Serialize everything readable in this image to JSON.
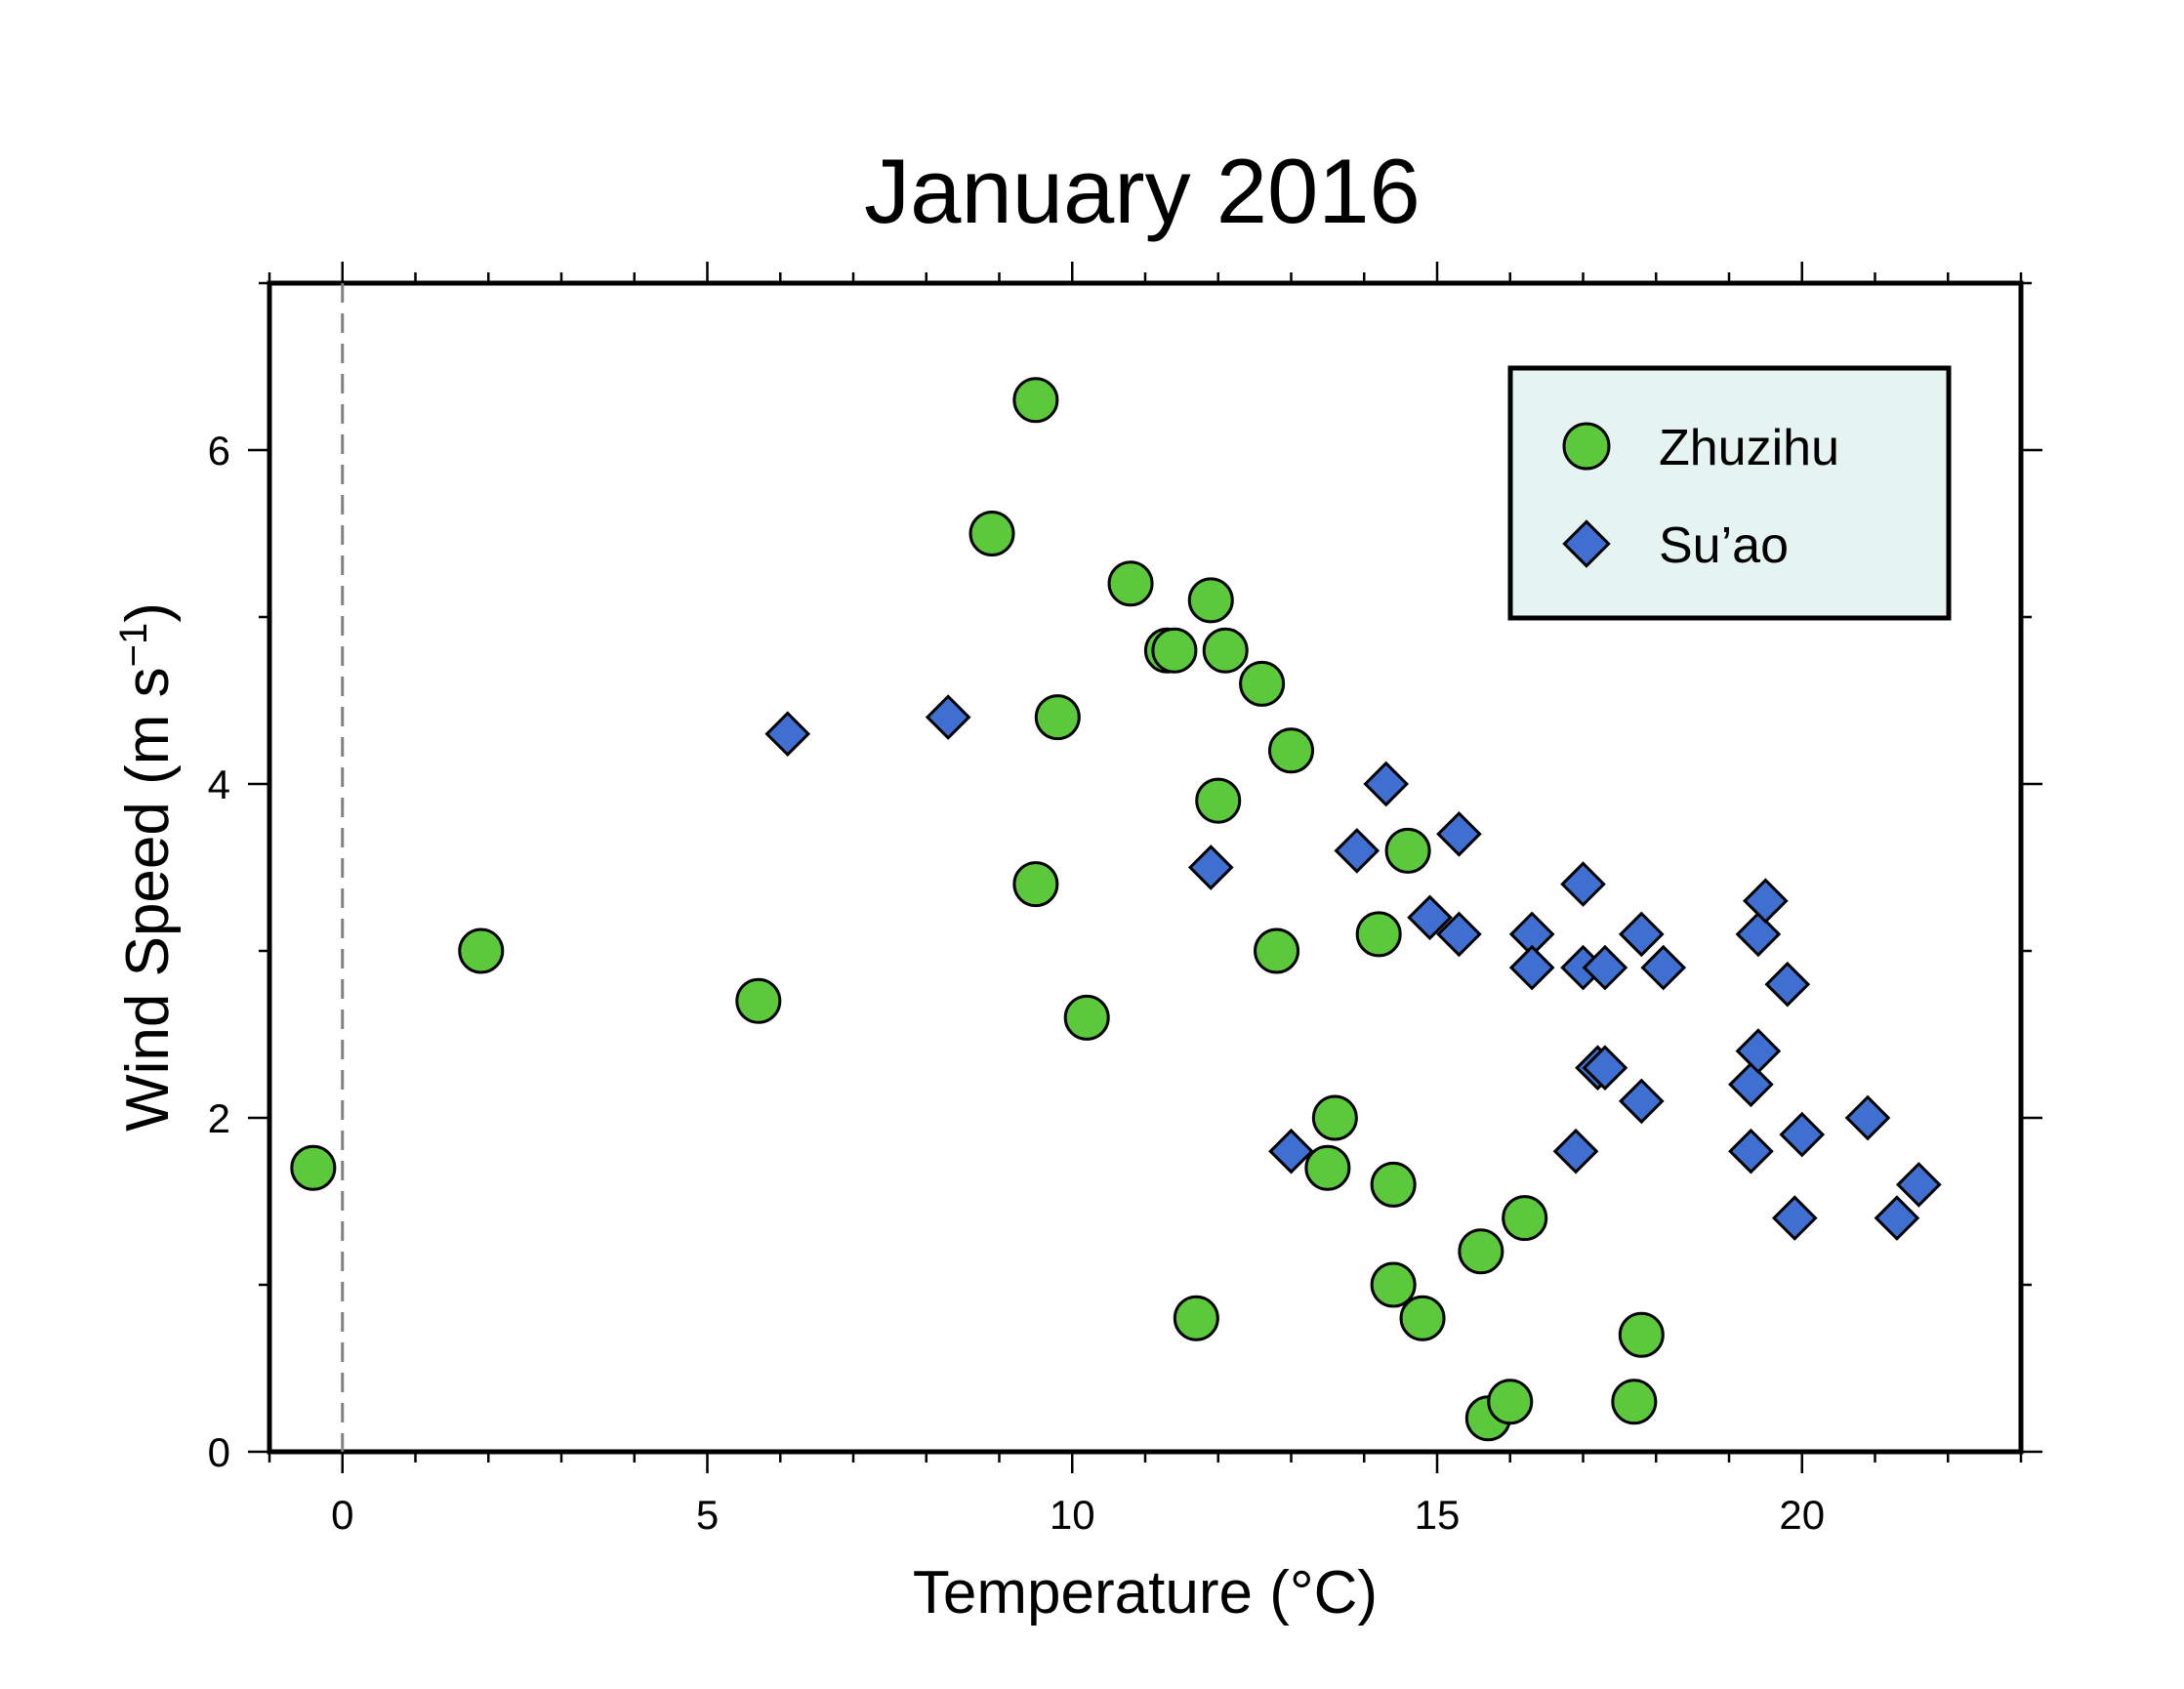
{
  "chart_data": {
    "type": "scatter",
    "title": "January 2016",
    "xlabel": "Temperature (°C)",
    "ylabel": "Wind Speed (m s",
    "ylabel_sup": "−1",
    "ylabel_end": ")",
    "xlim": [
      -1,
      23
    ],
    "ylim": [
      0,
      7
    ],
    "xticks": [
      0,
      5,
      10,
      15,
      20
    ],
    "yticks": [
      0,
      2,
      4,
      6
    ],
    "reference_line": {
      "axis": "x",
      "value": 0,
      "style": "dashed",
      "color": "#808080"
    },
    "legend": {
      "placement": "top-right",
      "background": "#e6f4f1"
    },
    "grid": false,
    "series": [
      {
        "name": "Zhuzihu",
        "marker": "circle",
        "color": "#5cc93c",
        "points": [
          [
            -0.4,
            1.7
          ],
          [
            1.9,
            3.0
          ],
          [
            5.7,
            2.7
          ],
          [
            8.9,
            5.5
          ],
          [
            9.5,
            6.3
          ],
          [
            9.5,
            3.4
          ],
          [
            9.8,
            4.4
          ],
          [
            10.2,
            2.6
          ],
          [
            10.8,
            5.2
          ],
          [
            11.3,
            4.8
          ],
          [
            11.4,
            4.8
          ],
          [
            11.7,
            0.8
          ],
          [
            11.9,
            5.1
          ],
          [
            12.0,
            3.9
          ],
          [
            12.1,
            4.8
          ],
          [
            12.6,
            4.6
          ],
          [
            12.8,
            3.0
          ],
          [
            13.0,
            4.2
          ],
          [
            13.5,
            1.7
          ],
          [
            13.6,
            2.0
          ],
          [
            14.2,
            3.1
          ],
          [
            14.4,
            1.6
          ],
          [
            14.4,
            1.0
          ],
          [
            14.6,
            3.6
          ],
          [
            14.8,
            0.8
          ],
          [
            15.6,
            1.2
          ],
          [
            15.7,
            0.2
          ],
          [
            16.0,
            0.3
          ],
          [
            16.2,
            1.4
          ],
          [
            17.7,
            0.3
          ],
          [
            17.8,
            0.7
          ]
        ]
      },
      {
        "name": "Su’ao",
        "marker": "diamond",
        "color": "#3f6fd1",
        "points": [
          [
            6.1,
            4.3
          ],
          [
            8.3,
            4.4
          ],
          [
            11.9,
            3.5
          ],
          [
            13.0,
            1.8
          ],
          [
            13.9,
            3.6
          ],
          [
            14.3,
            4.0
          ],
          [
            14.9,
            3.2
          ],
          [
            15.3,
            3.1
          ],
          [
            15.3,
            3.7
          ],
          [
            16.3,
            3.1
          ],
          [
            16.3,
            2.9
          ],
          [
            16.9,
            1.8
          ],
          [
            17.0,
            3.4
          ],
          [
            17.0,
            2.9
          ],
          [
            17.2,
            2.3
          ],
          [
            17.3,
            2.9
          ],
          [
            17.3,
            2.3
          ],
          [
            17.8,
            2.1
          ],
          [
            17.8,
            3.1
          ],
          [
            18.1,
            2.9
          ],
          [
            19.3,
            2.2
          ],
          [
            19.3,
            1.8
          ],
          [
            19.4,
            3.1
          ],
          [
            19.4,
            2.4
          ],
          [
            19.5,
            3.3
          ],
          [
            19.8,
            2.8
          ],
          [
            19.9,
            1.4
          ],
          [
            20.0,
            1.9
          ],
          [
            20.9,
            2.0
          ],
          [
            21.3,
            1.4
          ],
          [
            21.6,
            1.6
          ]
        ]
      }
    ]
  }
}
